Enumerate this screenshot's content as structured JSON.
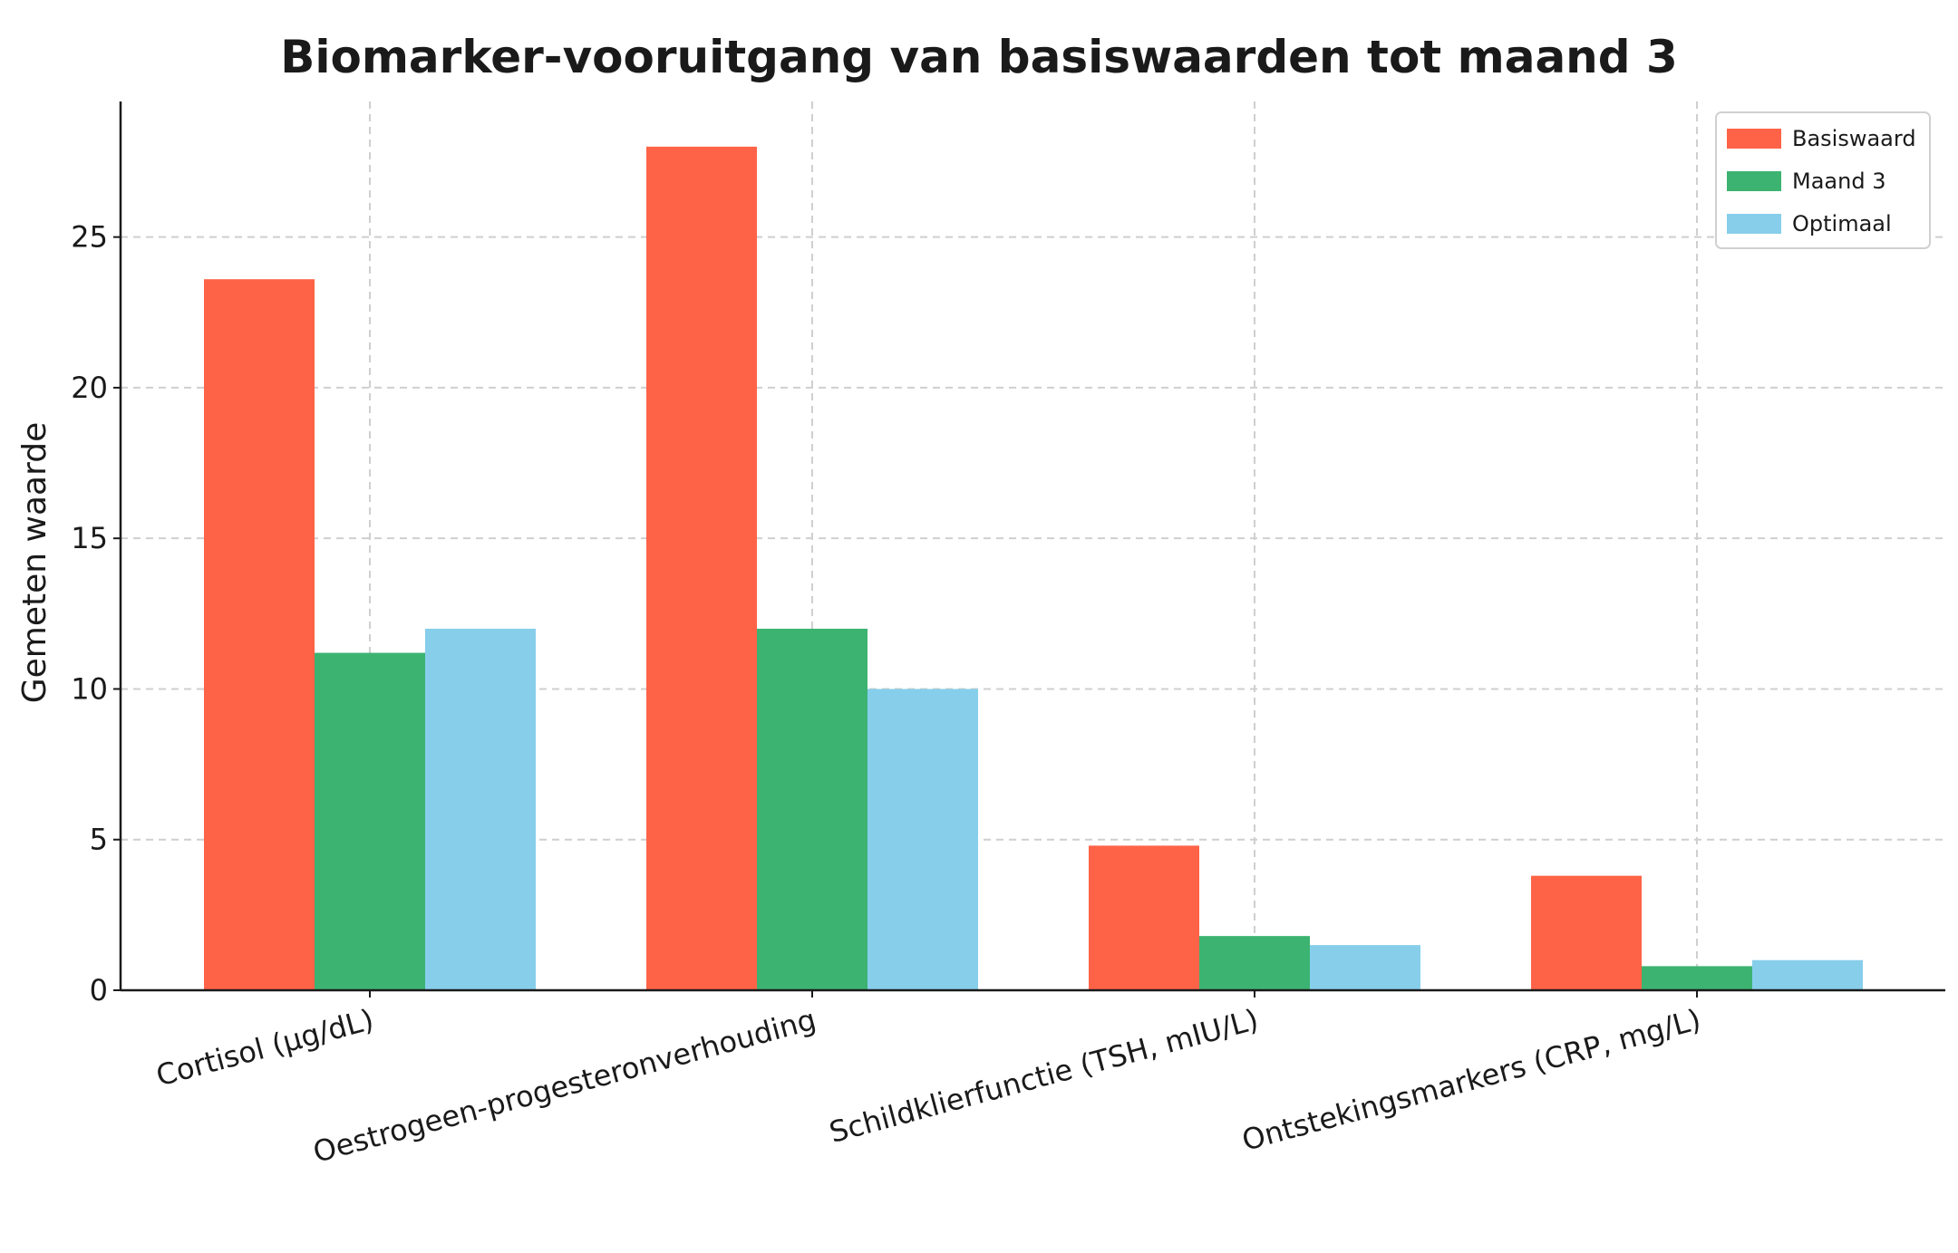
{
  "chart_data": {
    "type": "bar",
    "title": "Biomarker-vooruitgang van basiswaarden tot maand 3",
    "xlabel": "",
    "ylabel": "Gemeten waarde",
    "categories": [
      "Cortisol (µg/dL)",
      "Oestrogeen-progesteronverhouding",
      "Schildklierfunctie (TSH, mIU/L)",
      "Ontstekingsmarkers (CRP, mg/L)"
    ],
    "series": [
      {
        "name": "Basiswaard",
        "color": "#FF6347",
        "values": [
          23.6,
          28.0,
          4.8,
          3.8
        ]
      },
      {
        "name": "Maand 3",
        "color": "#3CB371",
        "values": [
          11.2,
          12.0,
          1.8,
          0.8
        ]
      },
      {
        "name": "Optimaal",
        "color": "#87CEEB",
        "values": [
          12.0,
          10.0,
          1.5,
          1.0
        ]
      }
    ],
    "ylim": [
      0,
      29.5
    ],
    "yticks": [
      0,
      5,
      10,
      15,
      20,
      25
    ],
    "grid": true,
    "legend_position": "top-right"
  }
}
